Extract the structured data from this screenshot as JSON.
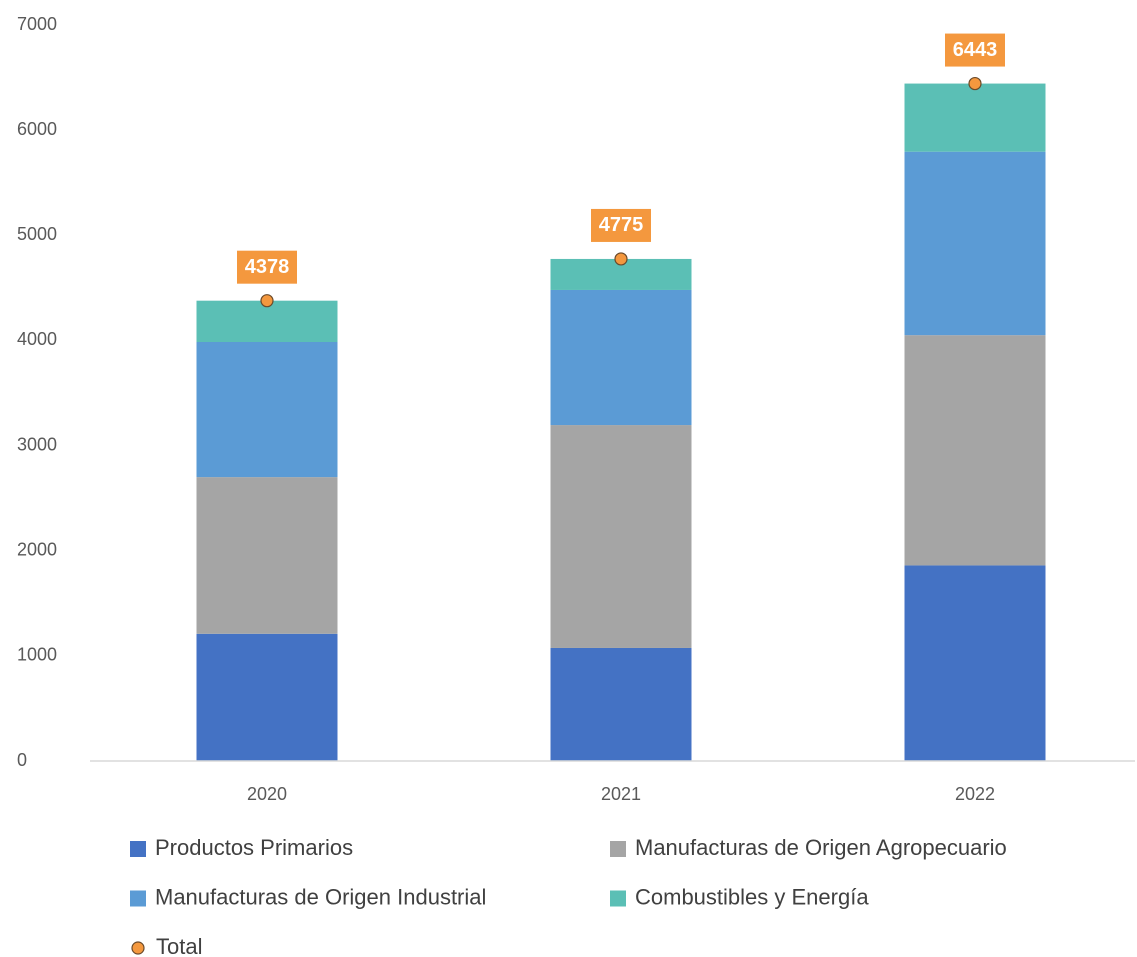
{
  "chart_data": {
    "type": "bar",
    "stacked": true,
    "categories": [
      "2020",
      "2021",
      "2022"
    ],
    "series": [
      {
        "name": "Productos Primarios",
        "color": "#4472c4",
        "values": [
          1210,
          1075,
          1860
        ]
      },
      {
        "name": "Manufacturas de Origen Agropecuario",
        "color": "#a5a5a5",
        "values": [
          1490,
          2120,
          2190
        ]
      },
      {
        "name": "Manufacturas de Origen Industrial",
        "color": "#5b9bd5",
        "values": [
          1285,
          1285,
          1745
        ]
      },
      {
        "name": "Combustibles y Energía",
        "color": "#5bbfb5",
        "values": [
          393,
          295,
          648
        ]
      },
      {
        "name": "Total",
        "type": "point",
        "color": "#f4983e",
        "values": [
          4378,
          4775,
          6443
        ]
      }
    ],
    "ylim": [
      0,
      7000
    ],
    "yticks": [
      0,
      1000,
      2000,
      3000,
      4000,
      5000,
      6000,
      7000
    ],
    "grid": false,
    "legend": "bottom"
  }
}
